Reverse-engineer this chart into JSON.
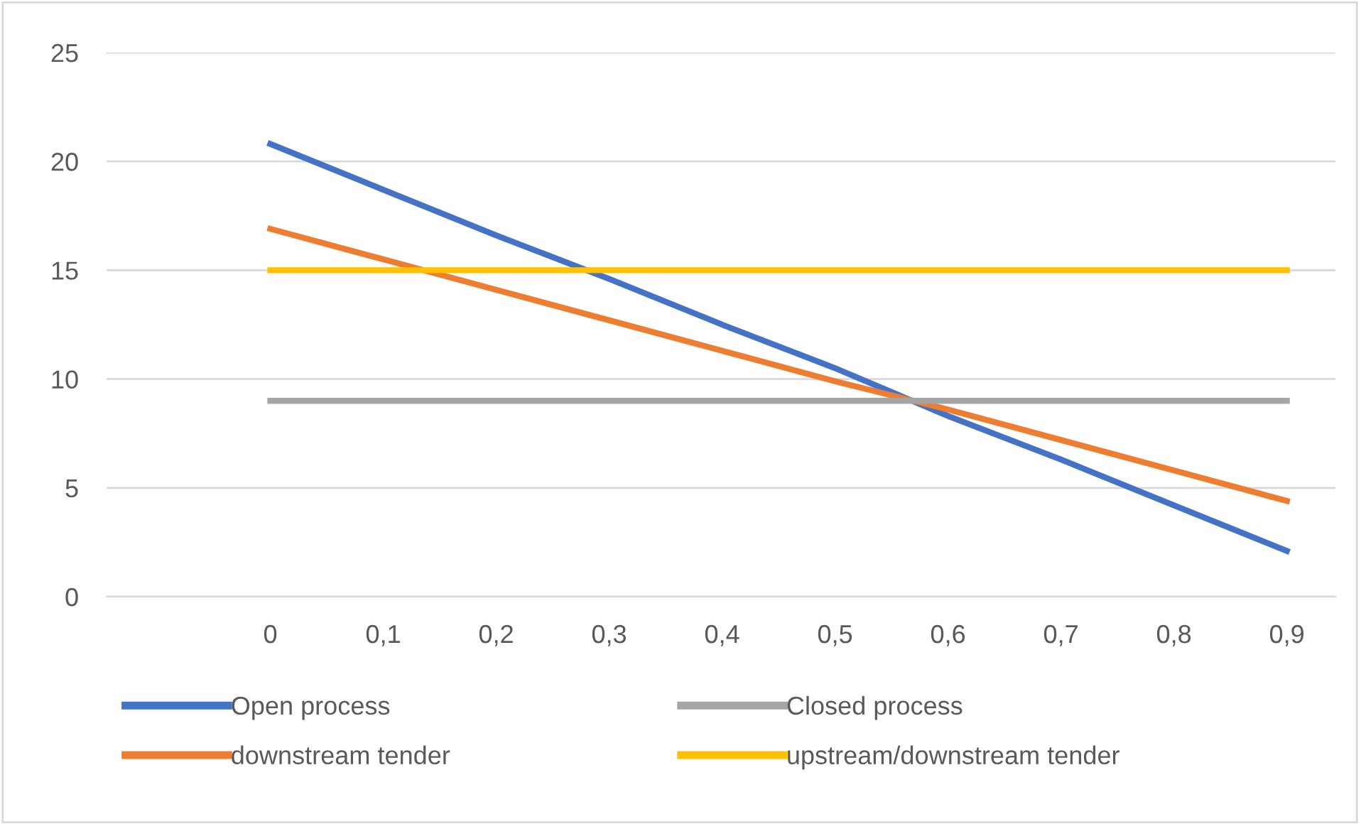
{
  "chart_data": {
    "type": "line",
    "x": [
      0,
      0.1,
      0.2,
      0.3,
      0.4,
      0.5,
      0.6,
      0.7,
      0.8,
      0.9
    ],
    "series": [
      {
        "name": "Open process",
        "color": "#4472c4",
        "values": [
          20.8,
          18.7,
          16.6,
          14.6,
          12.5,
          10.5,
          8.3,
          6.3,
          4.2,
          2.1
        ]
      },
      {
        "name": "downstream tender",
        "color": "#ed7d31",
        "values": [
          16.9,
          15.5,
          14.1,
          12.7,
          11.3,
          9.9,
          8.6,
          7.2,
          5.8,
          4.4
        ]
      },
      {
        "name": "Closed process",
        "color": "#a5a5a5",
        "values": [
          9,
          9,
          9,
          9,
          9,
          9,
          9,
          9,
          9,
          9
        ]
      },
      {
        "name": "upstream/downstream tender",
        "color": "#ffc000",
        "values": [
          15,
          15,
          15,
          15,
          15,
          15,
          15,
          15,
          15,
          15
        ]
      }
    ],
    "xlim": [
      -0.145,
      0.943
    ],
    "xticks": [
      {
        "value": 0,
        "label": "0"
      },
      {
        "value": 0.1,
        "label": "0,1"
      },
      {
        "value": 0.2,
        "label": "0,2"
      },
      {
        "value": 0.3,
        "label": "0,3"
      },
      {
        "value": 0.4,
        "label": "0,4"
      },
      {
        "value": 0.5,
        "label": "0,5"
      },
      {
        "value": 0.6,
        "label": "0,6"
      },
      {
        "value": 0.7,
        "label": "0,7"
      },
      {
        "value": 0.8,
        "label": "0,8"
      },
      {
        "value": 0.9,
        "label": "0,9"
      }
    ],
    "ylim": [
      0,
      25
    ],
    "yticks": [
      0,
      5,
      10,
      15,
      20,
      25
    ],
    "grid": "y",
    "legend": "bottom",
    "marker": "none",
    "line_style": "solid"
  }
}
